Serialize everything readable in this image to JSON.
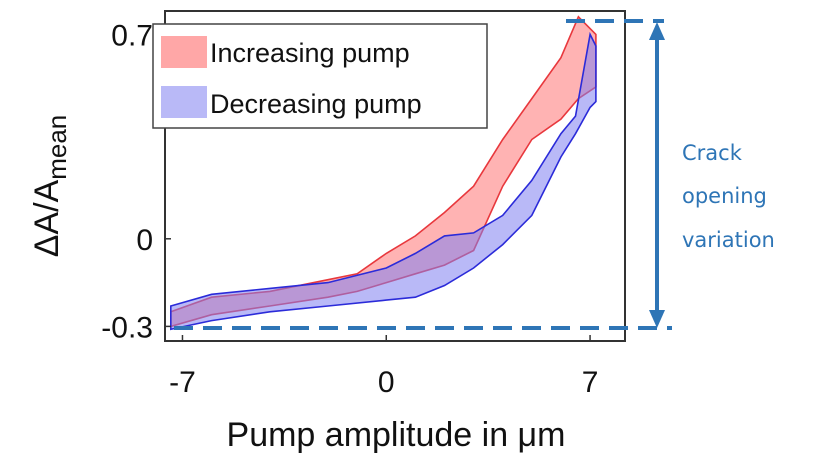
{
  "chart_data": {
    "type": "area",
    "xlabel": "Pump amplitude in μm",
    "ylabel_main": "ΔA/A",
    "ylabel_sub": "mean",
    "xlim": [
      -7.6,
      8.2
    ],
    "ylim": [
      -0.35,
      0.78
    ],
    "xticks": [
      {
        "value": -7,
        "label": "-7"
      },
      {
        "value": 0,
        "label": "0"
      },
      {
        "value": 7,
        "label": "7"
      }
    ],
    "yticks": [
      {
        "value": -0.3,
        "label": "-0.3"
      },
      {
        "value": 0,
        "label": "0"
      },
      {
        "value": 0.7,
        "label": "0.7"
      }
    ],
    "grid": false,
    "legend_position": "top-left",
    "series": [
      {
        "name": "Increasing pump",
        "fill_color": "#FF8A8A",
        "line_color": "#E8383D",
        "x": [
          -7.4,
          -6,
          -4,
          -2,
          -1,
          0,
          1,
          2,
          3,
          4,
          5,
          6,
          6.6,
          7.2
        ],
        "upper": [
          -0.25,
          -0.2,
          -0.18,
          -0.14,
          -0.12,
          -0.05,
          0.01,
          0.09,
          0.18,
          0.34,
          0.48,
          0.62,
          0.76,
          0.7
        ],
        "lower": [
          -0.3,
          -0.26,
          -0.23,
          -0.2,
          -0.18,
          -0.15,
          -0.12,
          -0.09,
          -0.04,
          0.18,
          0.34,
          0.41,
          0.48,
          0.52
        ]
      },
      {
        "name": "Decreasing pump",
        "fill_color": "#8080F0",
        "line_color": "#2B2BD9",
        "x": [
          -7.4,
          -6,
          -4,
          -2,
          0,
          1,
          2,
          3,
          4,
          5,
          6,
          6.5,
          7,
          7.2
        ],
        "upper": [
          -0.23,
          -0.19,
          -0.17,
          -0.15,
          -0.1,
          -0.05,
          0.01,
          0.02,
          0.08,
          0.2,
          0.36,
          0.42,
          0.7,
          0.66
        ],
        "lower": [
          -0.31,
          -0.28,
          -0.25,
          -0.23,
          -0.21,
          -0.2,
          -0.16,
          -0.1,
          -0.02,
          0.08,
          0.28,
          0.36,
          0.45,
          0.47
        ]
      }
    ]
  },
  "annotation": {
    "lines": [
      "Crack",
      "opening",
      "variation"
    ],
    "color": "#2E75B6"
  }
}
